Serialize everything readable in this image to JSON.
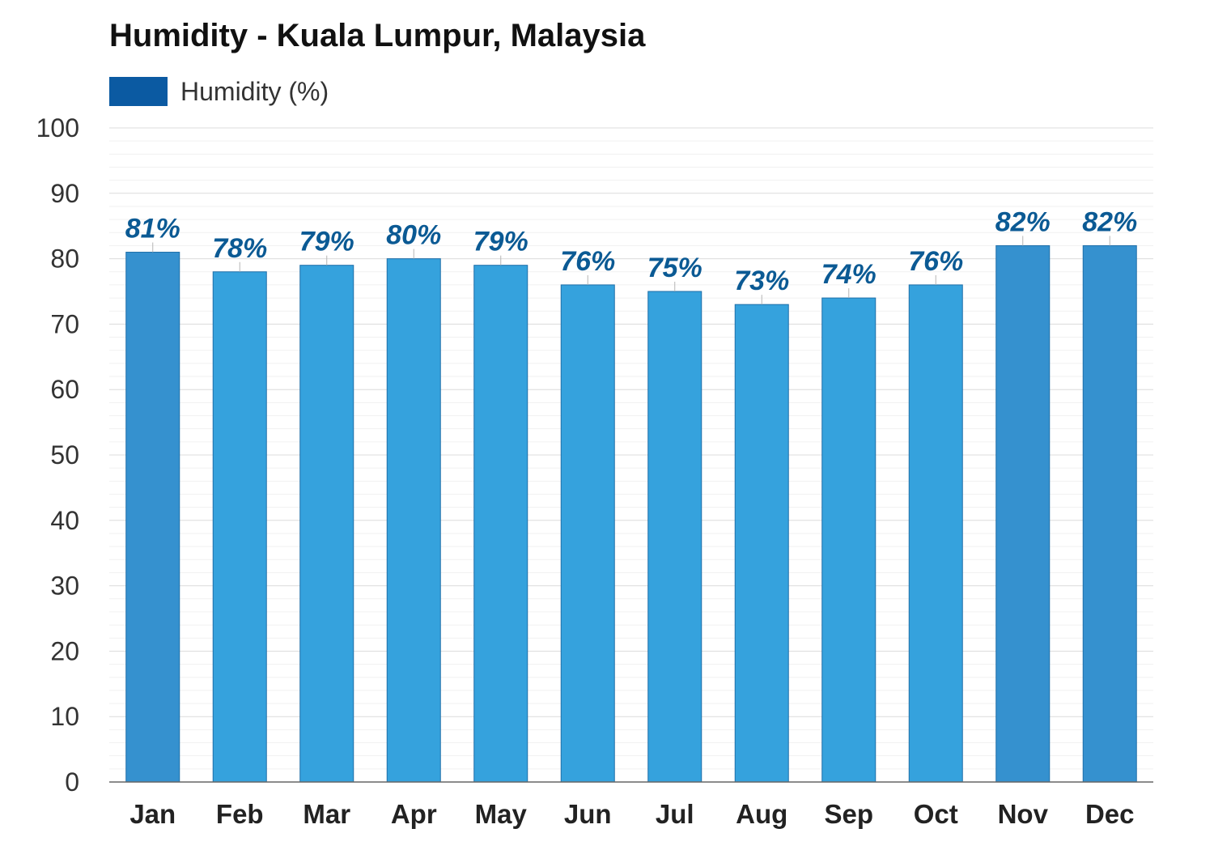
{
  "chart_data": {
    "type": "bar",
    "title": "Humidity - Kuala Lumpur, Malaysia",
    "legend": {
      "label": "Humidity (%)",
      "placement": "top-left"
    },
    "categories": [
      "Jan",
      "Feb",
      "Mar",
      "Apr",
      "May",
      "Jun",
      "Jul",
      "Aug",
      "Sep",
      "Oct",
      "Nov",
      "Dec"
    ],
    "series": [
      {
        "name": "Humidity (%)",
        "values": [
          81,
          78,
          79,
          80,
          79,
          76,
          75,
          73,
          74,
          76,
          82,
          82
        ],
        "data_labels": [
          "81%",
          "78%",
          "79%",
          "80%",
          "79%",
          "76%",
          "75%",
          "73%",
          "74%",
          "76%",
          "82%",
          "82%"
        ]
      }
    ],
    "ylim": [
      0,
      100
    ],
    "yticks": [
      0,
      10,
      20,
      30,
      40,
      50,
      60,
      70,
      80,
      90,
      100
    ],
    "grid": true,
    "colors": {
      "bar": "#35a2dd",
      "bar_highlight": "#3591cf",
      "bar_edge": "#1f6fa8",
      "legend": "#0b5aa2",
      "data_label": "#0b5a94"
    },
    "highlighted_categories": [
      "Jan",
      "Nov",
      "Dec"
    ]
  }
}
